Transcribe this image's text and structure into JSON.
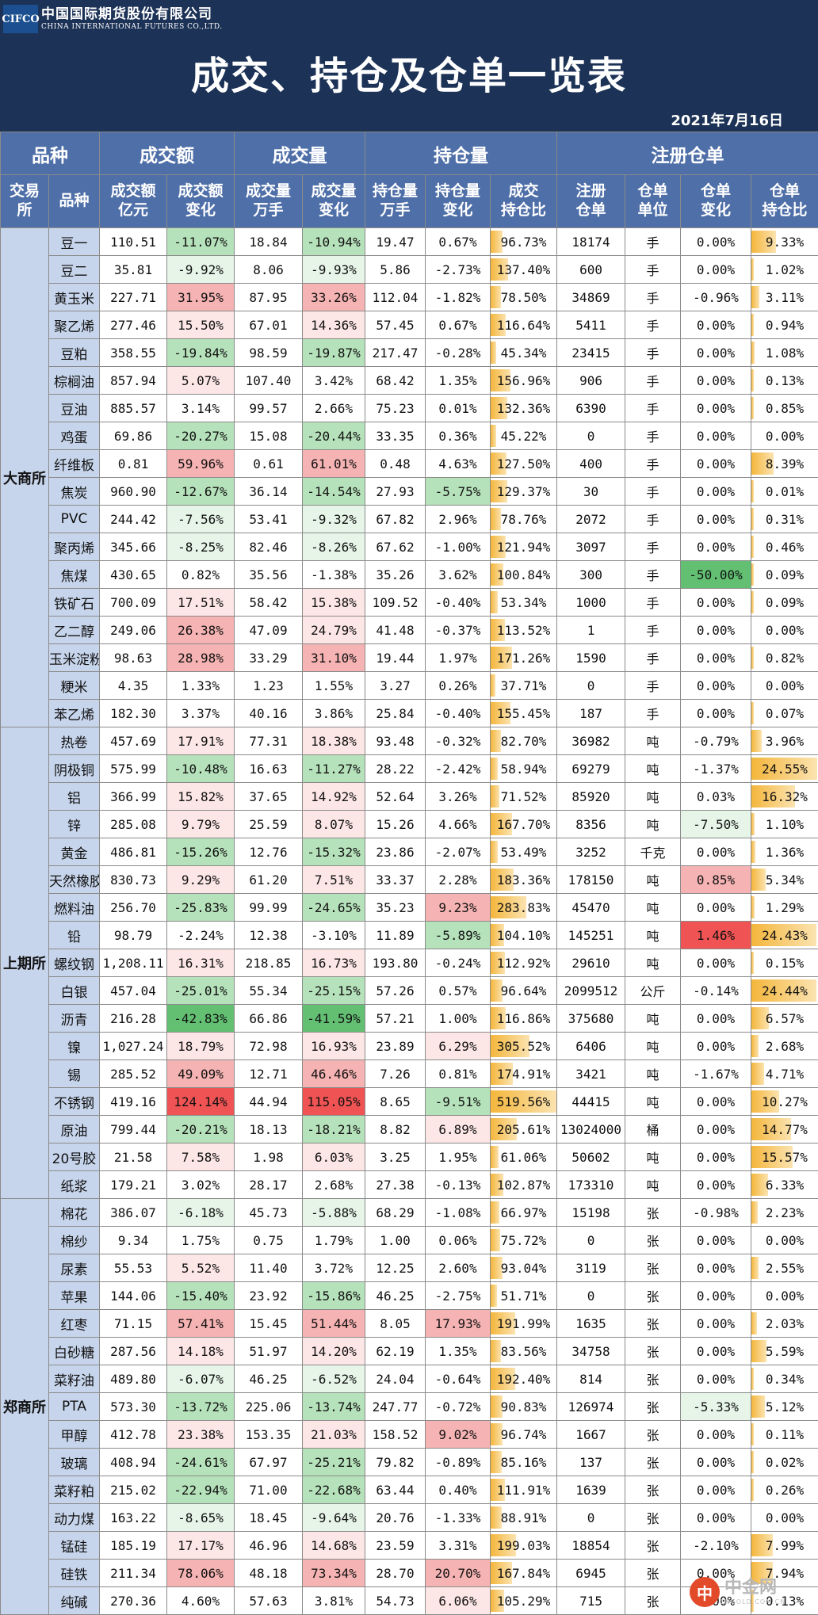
{
  "header": {
    "logo_abbr": "CIFCO",
    "logo_cn": "中国国际期货股份有限公司",
    "logo_en": "CHINA INTERNATIONAL FUTURES CO.,LTD.",
    "title": "成交、持仓及仓单一览表",
    "date": "2021年7月16日"
  },
  "groups": [
    "品种",
    "成交额",
    "成交量",
    "持仓量",
    "注册仓单"
  ],
  "columns": [
    "交易\n所",
    "品种",
    "成交额\n亿元",
    "成交额\n变化",
    "成交量\n万手",
    "成交量\n变化",
    "持仓量\n万手",
    "持仓量\n变化",
    "成交\n持仓比",
    "注册\n仓单",
    "仓单\n单位",
    "仓单\n变化",
    "仓单\n持仓比"
  ],
  "colors": {
    "red_strong": "#ef5353",
    "red": "#f6b3b3",
    "red_light": "#fde6e6",
    "green_strong": "#63c073",
    "green": "#b6e2bb",
    "green_light": "#e6f5e8"
  },
  "exchanges": [
    {
      "name": "大商所",
      "rows": [
        [
          "豆一",
          "110.51",
          "-11.07%",
          "18.84",
          "-10.94%",
          "19.47",
          "0.67%",
          "96.73%",
          "18174",
          "手",
          "0.00%",
          "9.33%"
        ],
        [
          "豆二",
          "35.81",
          "-9.92%",
          "8.06",
          "-9.93%",
          "5.86",
          "-2.73%",
          "137.40%",
          "600",
          "手",
          "0.00%",
          "1.02%"
        ],
        [
          "黄玉米",
          "227.71",
          "31.95%",
          "87.95",
          "33.26%",
          "112.04",
          "-1.82%",
          "78.50%",
          "34869",
          "手",
          "-0.96%",
          "3.11%"
        ],
        [
          "聚乙烯",
          "277.46",
          "15.50%",
          "67.01",
          "14.36%",
          "57.45",
          "0.67%",
          "116.64%",
          "5411",
          "手",
          "0.00%",
          "0.94%"
        ],
        [
          "豆粕",
          "358.55",
          "-19.84%",
          "98.59",
          "-19.87%",
          "217.47",
          "-0.28%",
          "45.34%",
          "23415",
          "手",
          "0.00%",
          "1.08%"
        ],
        [
          "棕榈油",
          "857.94",
          "5.07%",
          "107.40",
          "3.42%",
          "68.42",
          "1.35%",
          "156.96%",
          "906",
          "手",
          "0.00%",
          "0.13%"
        ],
        [
          "豆油",
          "885.57",
          "3.14%",
          "99.57",
          "2.66%",
          "75.23",
          "0.01%",
          "132.36%",
          "6390",
          "手",
          "0.00%",
          "0.85%"
        ],
        [
          "鸡蛋",
          "69.86",
          "-20.27%",
          "15.08",
          "-20.44%",
          "33.35",
          "0.36%",
          "45.22%",
          "0",
          "手",
          "0.00%",
          "0.00%"
        ],
        [
          "纤维板",
          "0.81",
          "59.96%",
          "0.61",
          "61.01%",
          "0.48",
          "4.63%",
          "127.50%",
          "400",
          "手",
          "0.00%",
          "8.39%"
        ],
        [
          "焦炭",
          "960.90",
          "-12.67%",
          "36.14",
          "-14.54%",
          "27.93",
          "-5.75%",
          "129.37%",
          "30",
          "手",
          "0.00%",
          "0.01%"
        ],
        [
          "PVC",
          "244.42",
          "-7.56%",
          "53.41",
          "-9.32%",
          "67.82",
          "2.96%",
          "78.76%",
          "2072",
          "手",
          "0.00%",
          "0.31%"
        ],
        [
          "聚丙烯",
          "345.66",
          "-8.25%",
          "82.46",
          "-8.26%",
          "67.62",
          "-1.00%",
          "121.94%",
          "3097",
          "手",
          "0.00%",
          "0.46%"
        ],
        [
          "焦煤",
          "430.65",
          "0.82%",
          "35.56",
          "-1.38%",
          "35.26",
          "3.62%",
          "100.84%",
          "300",
          "手",
          "-50.00%",
          "0.09%"
        ],
        [
          "铁矿石",
          "700.09",
          "17.51%",
          "58.42",
          "15.38%",
          "109.52",
          "-0.40%",
          "53.34%",
          "1000",
          "手",
          "0.00%",
          "0.09%"
        ],
        [
          "乙二醇",
          "249.06",
          "26.38%",
          "47.09",
          "24.79%",
          "41.48",
          "-0.37%",
          "113.52%",
          "1",
          "手",
          "0.00%",
          "0.00%"
        ],
        [
          "玉米淀粉",
          "98.63",
          "28.98%",
          "33.29",
          "31.10%",
          "19.44",
          "1.97%",
          "171.26%",
          "1590",
          "手",
          "0.00%",
          "0.82%"
        ],
        [
          "粳米",
          "4.35",
          "1.33%",
          "1.23",
          "1.55%",
          "3.27",
          "0.26%",
          "37.71%",
          "0",
          "手",
          "0.00%",
          "0.00%"
        ],
        [
          "苯乙烯",
          "182.30",
          "3.37%",
          "40.16",
          "3.86%",
          "25.84",
          "-0.40%",
          "155.45%",
          "187",
          "手",
          "0.00%",
          "0.07%"
        ]
      ]
    },
    {
      "name": "上期所",
      "rows": [
        [
          "热卷",
          "457.69",
          "17.91%",
          "77.31",
          "18.38%",
          "93.48",
          "-0.32%",
          "82.70%",
          "36982",
          "吨",
          "-0.79%",
          "3.96%"
        ],
        [
          "阴极铜",
          "575.99",
          "-10.48%",
          "16.63",
          "-11.27%",
          "28.22",
          "-2.42%",
          "58.94%",
          "69279",
          "吨",
          "-1.37%",
          "24.55%"
        ],
        [
          "铝",
          "366.99",
          "15.82%",
          "37.65",
          "14.92%",
          "52.64",
          "3.26%",
          "71.52%",
          "85920",
          "吨",
          "0.03%",
          "16.32%"
        ],
        [
          "锌",
          "285.08",
          "9.79%",
          "25.59",
          "8.07%",
          "15.26",
          "4.66%",
          "167.70%",
          "8356",
          "吨",
          "-7.50%",
          "1.10%"
        ],
        [
          "黄金",
          "486.81",
          "-15.26%",
          "12.76",
          "-15.32%",
          "23.86",
          "-2.07%",
          "53.49%",
          "3252",
          "千克",
          "0.00%",
          "1.36%"
        ],
        [
          "天然橡胶",
          "830.73",
          "9.29%",
          "61.20",
          "7.51%",
          "33.37",
          "2.28%",
          "183.36%",
          "178150",
          "吨",
          "0.85%",
          "5.34%"
        ],
        [
          "燃料油",
          "256.70",
          "-25.83%",
          "99.99",
          "-24.65%",
          "35.23",
          "9.23%",
          "283.83%",
          "45470",
          "吨",
          "0.00%",
          "1.29%"
        ],
        [
          "铅",
          "98.79",
          "-2.24%",
          "12.38",
          "-3.10%",
          "11.89",
          "-5.89%",
          "104.10%",
          "145251",
          "吨",
          "1.46%",
          "24.43%"
        ],
        [
          "螺纹钢",
          "1,208.11",
          "16.31%",
          "218.85",
          "16.73%",
          "193.80",
          "-0.24%",
          "112.92%",
          "29610",
          "吨",
          "0.00%",
          "0.15%"
        ],
        [
          "白银",
          "457.04",
          "-25.01%",
          "55.34",
          "-25.15%",
          "57.26",
          "0.57%",
          "96.64%",
          "2099512",
          "公斤",
          "-0.14%",
          "24.44%"
        ],
        [
          "沥青",
          "216.28",
          "-42.83%",
          "66.86",
          "-41.59%",
          "57.21",
          "1.00%",
          "116.86%",
          "375680",
          "吨",
          "0.00%",
          "6.57%"
        ],
        [
          "镍",
          "1,027.24",
          "18.79%",
          "72.98",
          "16.93%",
          "23.89",
          "6.29%",
          "305.52%",
          "6406",
          "吨",
          "0.00%",
          "2.68%"
        ],
        [
          "锡",
          "285.52",
          "49.09%",
          "12.71",
          "46.46%",
          "7.26",
          "0.81%",
          "174.91%",
          "3421",
          "吨",
          "-1.67%",
          "4.71%"
        ],
        [
          "不锈钢",
          "419.16",
          "124.14%",
          "44.94",
          "115.05%",
          "8.65",
          "-9.51%",
          "519.56%",
          "44415",
          "吨",
          "0.00%",
          "10.27%"
        ],
        [
          "原油",
          "799.44",
          "-20.21%",
          "18.13",
          "-18.21%",
          "8.82",
          "6.89%",
          "205.61%",
          "13024000",
          "桶",
          "0.00%",
          "14.77%"
        ],
        [
          "20号胶",
          "21.58",
          "7.58%",
          "1.98",
          "6.03%",
          "3.25",
          "1.95%",
          "61.06%",
          "50602",
          "吨",
          "0.00%",
          "15.57%"
        ],
        [
          "纸浆",
          "179.21",
          "3.02%",
          "28.17",
          "2.68%",
          "27.38",
          "-0.13%",
          "102.87%",
          "173310",
          "吨",
          "0.00%",
          "6.33%"
        ]
      ]
    },
    {
      "name": "郑商所",
      "rows": [
        [
          "棉花",
          "386.07",
          "-6.18%",
          "45.73",
          "-5.88%",
          "68.29",
          "-1.08%",
          "66.97%",
          "15198",
          "张",
          "-0.98%",
          "2.23%"
        ],
        [
          "棉纱",
          "9.34",
          "1.75%",
          "0.75",
          "1.79%",
          "1.00",
          "0.06%",
          "75.72%",
          "0",
          "张",
          "0.00%",
          "0.00%"
        ],
        [
          "尿素",
          "55.53",
          "5.52%",
          "11.40",
          "3.72%",
          "12.25",
          "2.60%",
          "93.04%",
          "3119",
          "张",
          "0.00%",
          "2.55%"
        ],
        [
          "苹果",
          "144.06",
          "-15.40%",
          "23.92",
          "-15.86%",
          "46.25",
          "-2.75%",
          "51.71%",
          "0",
          "张",
          "0.00%",
          "0.00%"
        ],
        [
          "红枣",
          "71.15",
          "57.41%",
          "15.45",
          "51.44%",
          "8.05",
          "17.93%",
          "191.99%",
          "1635",
          "张",
          "0.00%",
          "2.03%"
        ],
        [
          "白砂糖",
          "287.56",
          "14.18%",
          "51.97",
          "14.20%",
          "62.19",
          "1.35%",
          "83.56%",
          "34758",
          "张",
          "0.00%",
          "5.59%"
        ],
        [
          "菜籽油",
          "489.80",
          "-6.07%",
          "46.25",
          "-6.52%",
          "24.04",
          "-0.64%",
          "192.40%",
          "814",
          "张",
          "0.00%",
          "0.34%"
        ],
        [
          "PTA",
          "573.30",
          "-13.72%",
          "225.06",
          "-13.74%",
          "247.77",
          "-0.72%",
          "90.83%",
          "126974",
          "张",
          "-5.33%",
          "5.12%"
        ],
        [
          "甲醇",
          "412.78",
          "23.38%",
          "153.35",
          "21.03%",
          "158.52",
          "9.02%",
          "96.74%",
          "1667",
          "张",
          "0.00%",
          "0.11%"
        ],
        [
          "玻璃",
          "408.94",
          "-24.61%",
          "67.97",
          "-25.21%",
          "79.82",
          "-0.89%",
          "85.16%",
          "137",
          "张",
          "0.00%",
          "0.02%"
        ],
        [
          "菜籽粕",
          "215.02",
          "-22.94%",
          "71.00",
          "-22.68%",
          "63.44",
          "0.40%",
          "111.91%",
          "1639",
          "张",
          "0.00%",
          "0.26%"
        ],
        [
          "动力煤",
          "163.22",
          "-8.65%",
          "18.45",
          "-9.64%",
          "20.76",
          "-1.33%",
          "88.91%",
          "0",
          "张",
          "0.00%",
          "0.00%"
        ],
        [
          "锰硅",
          "185.19",
          "17.17%",
          "46.96",
          "14.68%",
          "23.59",
          "3.31%",
          "199.03%",
          "18854",
          "张",
          "-2.10%",
          "7.99%"
        ],
        [
          "硅铁",
          "211.34",
          "78.06%",
          "48.18",
          "73.34%",
          "28.70",
          "20.70%",
          "167.84%",
          "6945",
          "张",
          "0.00%",
          "7.94%"
        ],
        [
          "纯碱",
          "270.36",
          "4.60%",
          "57.63",
          "3.81%",
          "54.73",
          "6.06%",
          "105.29%",
          "715",
          "张",
          "0.00%",
          "0.13%"
        ]
      ]
    }
  ],
  "watermark": {
    "icon": "中",
    "text": "中金网",
    "sub": "CNGOLD.COM.CN"
  }
}
